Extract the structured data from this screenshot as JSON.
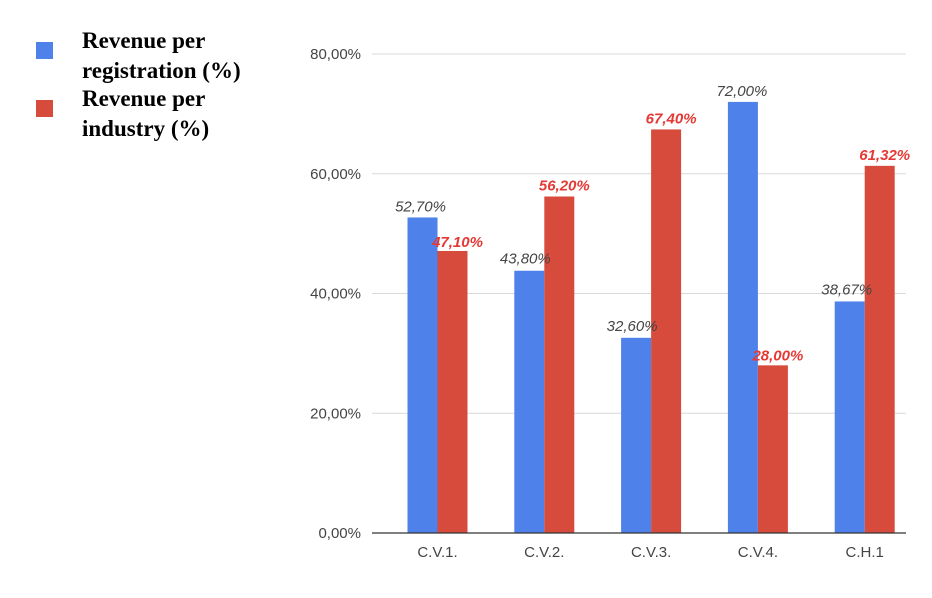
{
  "chart_data": {
    "type": "bar",
    "categories": [
      "C.V.1.",
      "C.V.2.",
      "C.V.3.",
      "C.V.4.",
      "C.H.1"
    ],
    "series": [
      {
        "name": "Revenue per registration (%)",
        "legend_lines": [
          "Revenue per",
          "registration (%)"
        ],
        "color": "#4f81ea",
        "values": [
          52.7,
          43.8,
          32.6,
          72.0,
          38.67
        ],
        "labels": [
          "52,70%",
          "43,80%",
          "32,60%",
          "72,00%",
          "38,67%"
        ]
      },
      {
        "name": "Revenue per industry (%)",
        "legend_lines": [
          "Revenue per",
          "industry (%)"
        ],
        "color": "#d64b3c",
        "values": [
          47.1,
          56.2,
          67.4,
          28.0,
          61.32
        ],
        "labels": [
          "47,10%",
          "56,20%",
          "67,40%",
          "28,00%",
          "61,32%"
        ]
      }
    ],
    "ylim": [
      0,
      80
    ],
    "yticks": [
      0,
      20,
      40,
      60,
      80
    ],
    "ytick_labels": [
      "0,00%",
      "20,00%",
      "40,00%",
      "60,00%",
      "80,00%"
    ],
    "grid": true,
    "legend_position": "left"
  }
}
